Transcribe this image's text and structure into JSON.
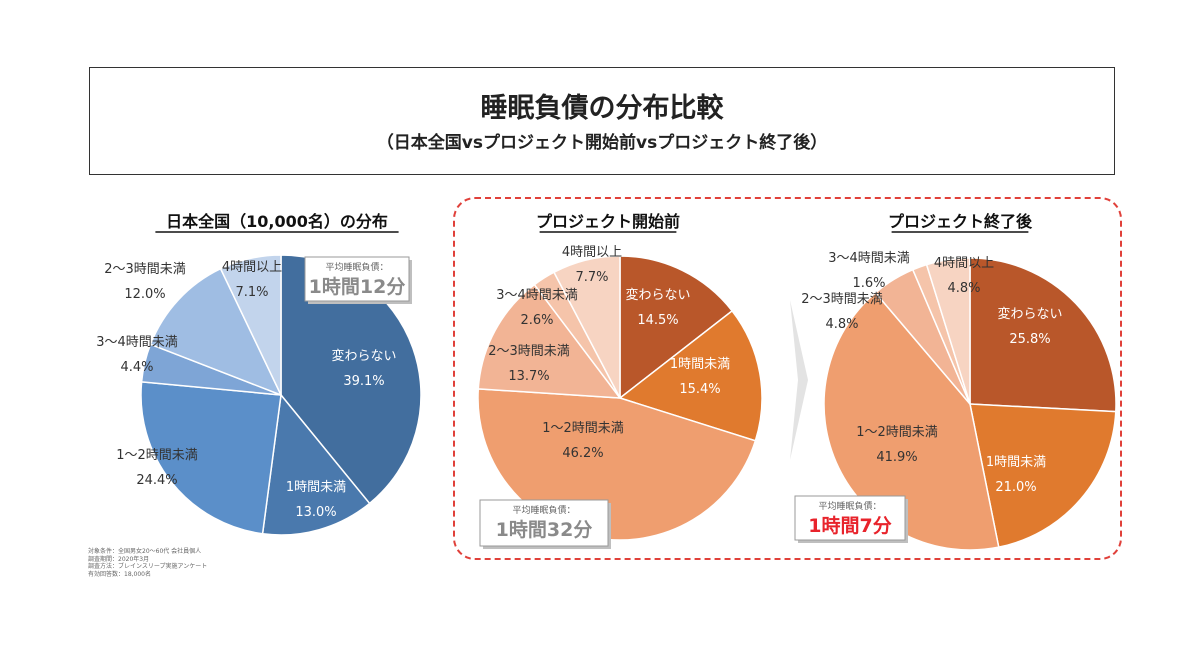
{
  "header": {
    "title": "睡眠負債の分布比較",
    "subtitle": "（日本全国vsプロジェクト開始前vsプロジェクト終了後）"
  },
  "footnote": [
    "対象条件：全国男女20～60代 会社員個人",
    "調査期間：2020年3月",
    "調査方法：ブレインスリープ実施アンケート",
    "有効回答数：18,000名"
  ],
  "colors": {
    "blue": [
      "#426e9e",
      "#4a79ad",
      "#5b8fc9",
      "#7ea5d6",
      "#9fbde3",
      "#c2d4ec"
    ],
    "orange": [
      "#b9572a",
      "#e07a2e",
      "#ef9e6f",
      "#f2b495",
      "#f5c4aa",
      "#f7d4c2"
    ],
    "accent_red": "#e8232b"
  },
  "chart_data": [
    {
      "type": "pie",
      "title": "日本全国（10,000名）の分布",
      "categories": [
        "変わらない",
        "1時間未満",
        "1～2時間未満",
        "3～4時間未満",
        "2～3時間未満",
        "4時間以上"
      ],
      "values": [
        39.1,
        13.0,
        24.4,
        4.4,
        12.0,
        7.1
      ],
      "value_labels": [
        "39.1%",
        "13.0%",
        "24.4%",
        "4.4%",
        "12.0%",
        "7.1%"
      ],
      "average_label": "平均睡眠負債：",
      "average_value": "1時間12分"
    },
    {
      "type": "pie",
      "title": "プロジェクト開始前",
      "categories": [
        "変わらない",
        "1時間未満",
        "1～2時間未満",
        "2～3時間未満",
        "3～4時間未満",
        "4時間以上"
      ],
      "values": [
        14.5,
        15.4,
        46.2,
        13.7,
        2.6,
        7.7
      ],
      "value_labels": [
        "14.5%",
        "15.4%",
        "46.2%",
        "13.7%",
        "2.6%",
        "7.7%"
      ],
      "average_label": "平均睡眠負債：",
      "average_value": "1時間32分"
    },
    {
      "type": "pie",
      "title": "プロジェクト終了後",
      "categories": [
        "変わらない",
        "1時間未満",
        "1～2時間未満",
        "2～3時間未満",
        "3～4時間未満",
        "4時間以上"
      ],
      "values": [
        25.8,
        21.0,
        41.9,
        4.8,
        1.6,
        4.8
      ],
      "value_labels": [
        "25.8%",
        "21.0%",
        "41.9%",
        "4.8%",
        "1.6%",
        "4.8%"
      ],
      "average_label": "平均睡眠負債：",
      "average_value": "1時間7分"
    }
  ]
}
